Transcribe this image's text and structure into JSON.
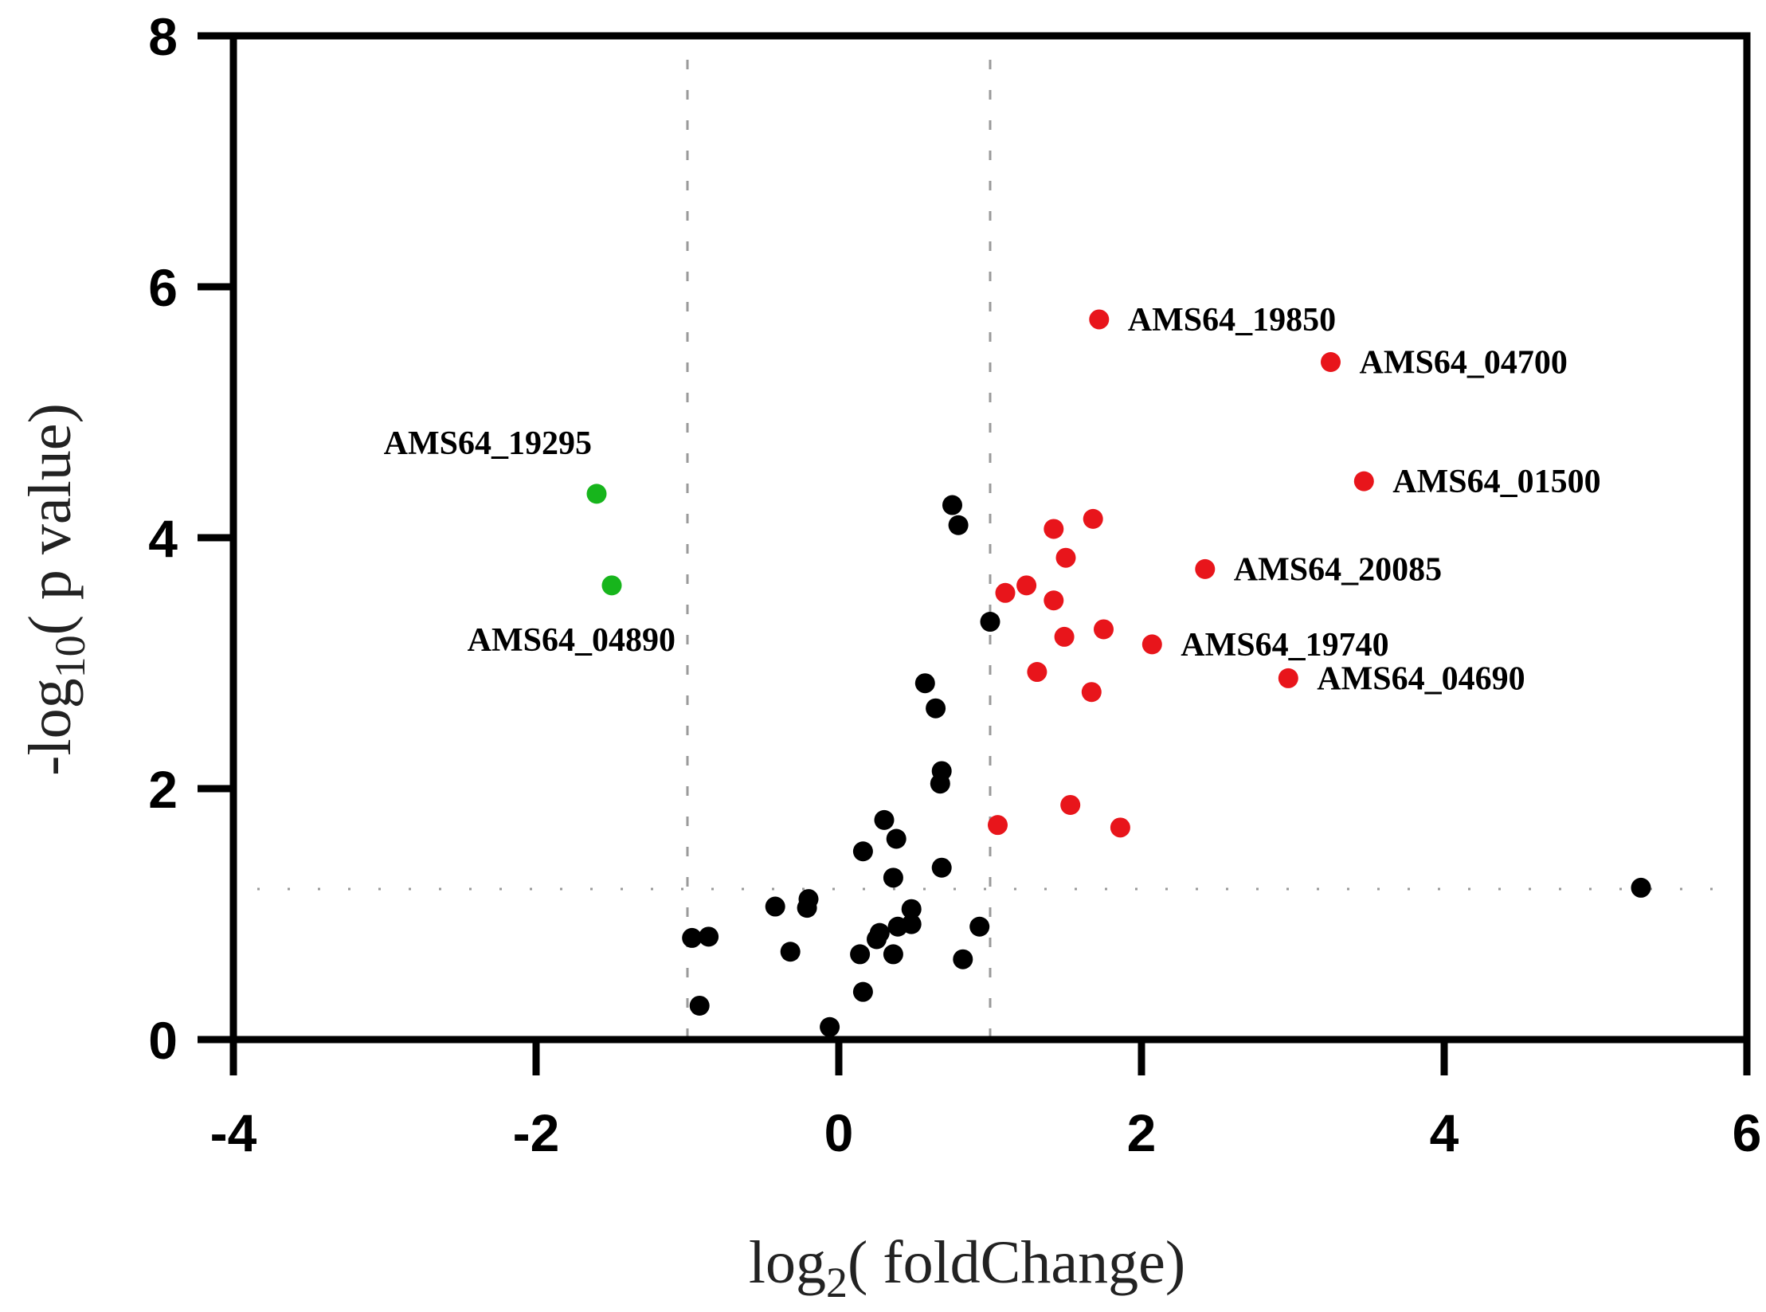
{
  "chart_data": {
    "type": "scatter",
    "xlabel": "log2( foldChange)",
    "xlabel_parts": {
      "prefix": "log",
      "sub": "2",
      "suffix": "( foldChange)"
    },
    "ylabel": "-log10( p value)",
    "ylabel_parts": {
      "prefix": "-log",
      "sub": "10",
      "suffix": "( p value)"
    },
    "xlim": [
      -4,
      6
    ],
    "ylim": [
      0,
      8
    ],
    "xticks": [
      -4,
      -2,
      0,
      2,
      4,
      6
    ],
    "yticks": [
      0,
      2,
      4,
      6,
      8
    ],
    "grid": false,
    "thresholds": {
      "vertical": [
        -1,
        1
      ],
      "horizontal": 1.2,
      "style": "dotted gray"
    },
    "colors": {
      "up": "#e8151b",
      "down": "#17b51c",
      "ns": "#000000",
      "threshold": "#9a9a9a"
    },
    "series": [
      {
        "group": "down",
        "points": [
          {
            "x": -1.6,
            "y": 4.35,
            "label": "AMS64_19295",
            "label_pos": "above-left"
          },
          {
            "x": -1.5,
            "y": 3.62,
            "label": "AMS64_04890",
            "label_pos": "below-right"
          }
        ]
      },
      {
        "group": "up",
        "points": [
          {
            "x": 1.72,
            "y": 5.74,
            "label": "AMS64_19850",
            "label_pos": "right"
          },
          {
            "x": 3.25,
            "y": 5.4,
            "label": "AMS64_04700",
            "label_pos": "right"
          },
          {
            "x": 3.47,
            "y": 4.45,
            "label": "AMS64_01500",
            "label_pos": "right"
          },
          {
            "x": 2.42,
            "y": 3.75,
            "label": "AMS64_20085",
            "label_pos": "right"
          },
          {
            "x": 2.07,
            "y": 3.15,
            "label": "AMS64_19740",
            "label_pos": "right"
          },
          {
            "x": 2.97,
            "y": 2.88,
            "label": "AMS64_04690",
            "label_pos": "right"
          },
          {
            "x": 1.68,
            "y": 4.15
          },
          {
            "x": 1.42,
            "y": 4.07
          },
          {
            "x": 1.5,
            "y": 3.84
          },
          {
            "x": 1.1,
            "y": 3.56
          },
          {
            "x": 1.24,
            "y": 3.62
          },
          {
            "x": 1.42,
            "y": 3.5
          },
          {
            "x": 1.75,
            "y": 3.27
          },
          {
            "x": 1.49,
            "y": 3.21
          },
          {
            "x": 1.31,
            "y": 2.93
          },
          {
            "x": 1.67,
            "y": 2.77
          },
          {
            "x": 1.05,
            "y": 1.71
          },
          {
            "x": 1.53,
            "y": 1.87
          },
          {
            "x": 1.86,
            "y": 1.69
          }
        ]
      },
      {
        "group": "ns",
        "points": [
          {
            "x": 0.75,
            "y": 4.26
          },
          {
            "x": 0.79,
            "y": 4.1
          },
          {
            "x": 1.0,
            "y": 3.33
          },
          {
            "x": 0.57,
            "y": 2.84
          },
          {
            "x": 0.64,
            "y": 2.64
          },
          {
            "x": 0.68,
            "y": 2.14
          },
          {
            "x": 0.67,
            "y": 2.04
          },
          {
            "x": 0.3,
            "y": 1.75
          },
          {
            "x": 0.16,
            "y": 1.5
          },
          {
            "x": 0.38,
            "y": 1.6
          },
          {
            "x": 0.68,
            "y": 1.37
          },
          {
            "x": 0.36,
            "y": 1.29
          },
          {
            "x": -0.2,
            "y": 1.12
          },
          {
            "x": -0.21,
            "y": 1.05
          },
          {
            "x": -0.42,
            "y": 1.06
          },
          {
            "x": 0.48,
            "y": 1.04
          },
          {
            "x": 0.48,
            "y": 0.92
          },
          {
            "x": 0.39,
            "y": 0.9
          },
          {
            "x": 0.27,
            "y": 0.85
          },
          {
            "x": 0.25,
            "y": 0.8
          },
          {
            "x": -0.97,
            "y": 0.81
          },
          {
            "x": -0.86,
            "y": 0.82
          },
          {
            "x": 0.93,
            "y": 0.9
          },
          {
            "x": -0.32,
            "y": 0.7
          },
          {
            "x": 0.14,
            "y": 0.68
          },
          {
            "x": 0.36,
            "y": 0.68
          },
          {
            "x": 0.82,
            "y": 0.64
          },
          {
            "x": 0.16,
            "y": 0.38
          },
          {
            "x": -0.92,
            "y": 0.27
          },
          {
            "x": -0.06,
            "y": 0.1
          },
          {
            "x": 5.3,
            "y": 1.21
          }
        ]
      }
    ]
  }
}
